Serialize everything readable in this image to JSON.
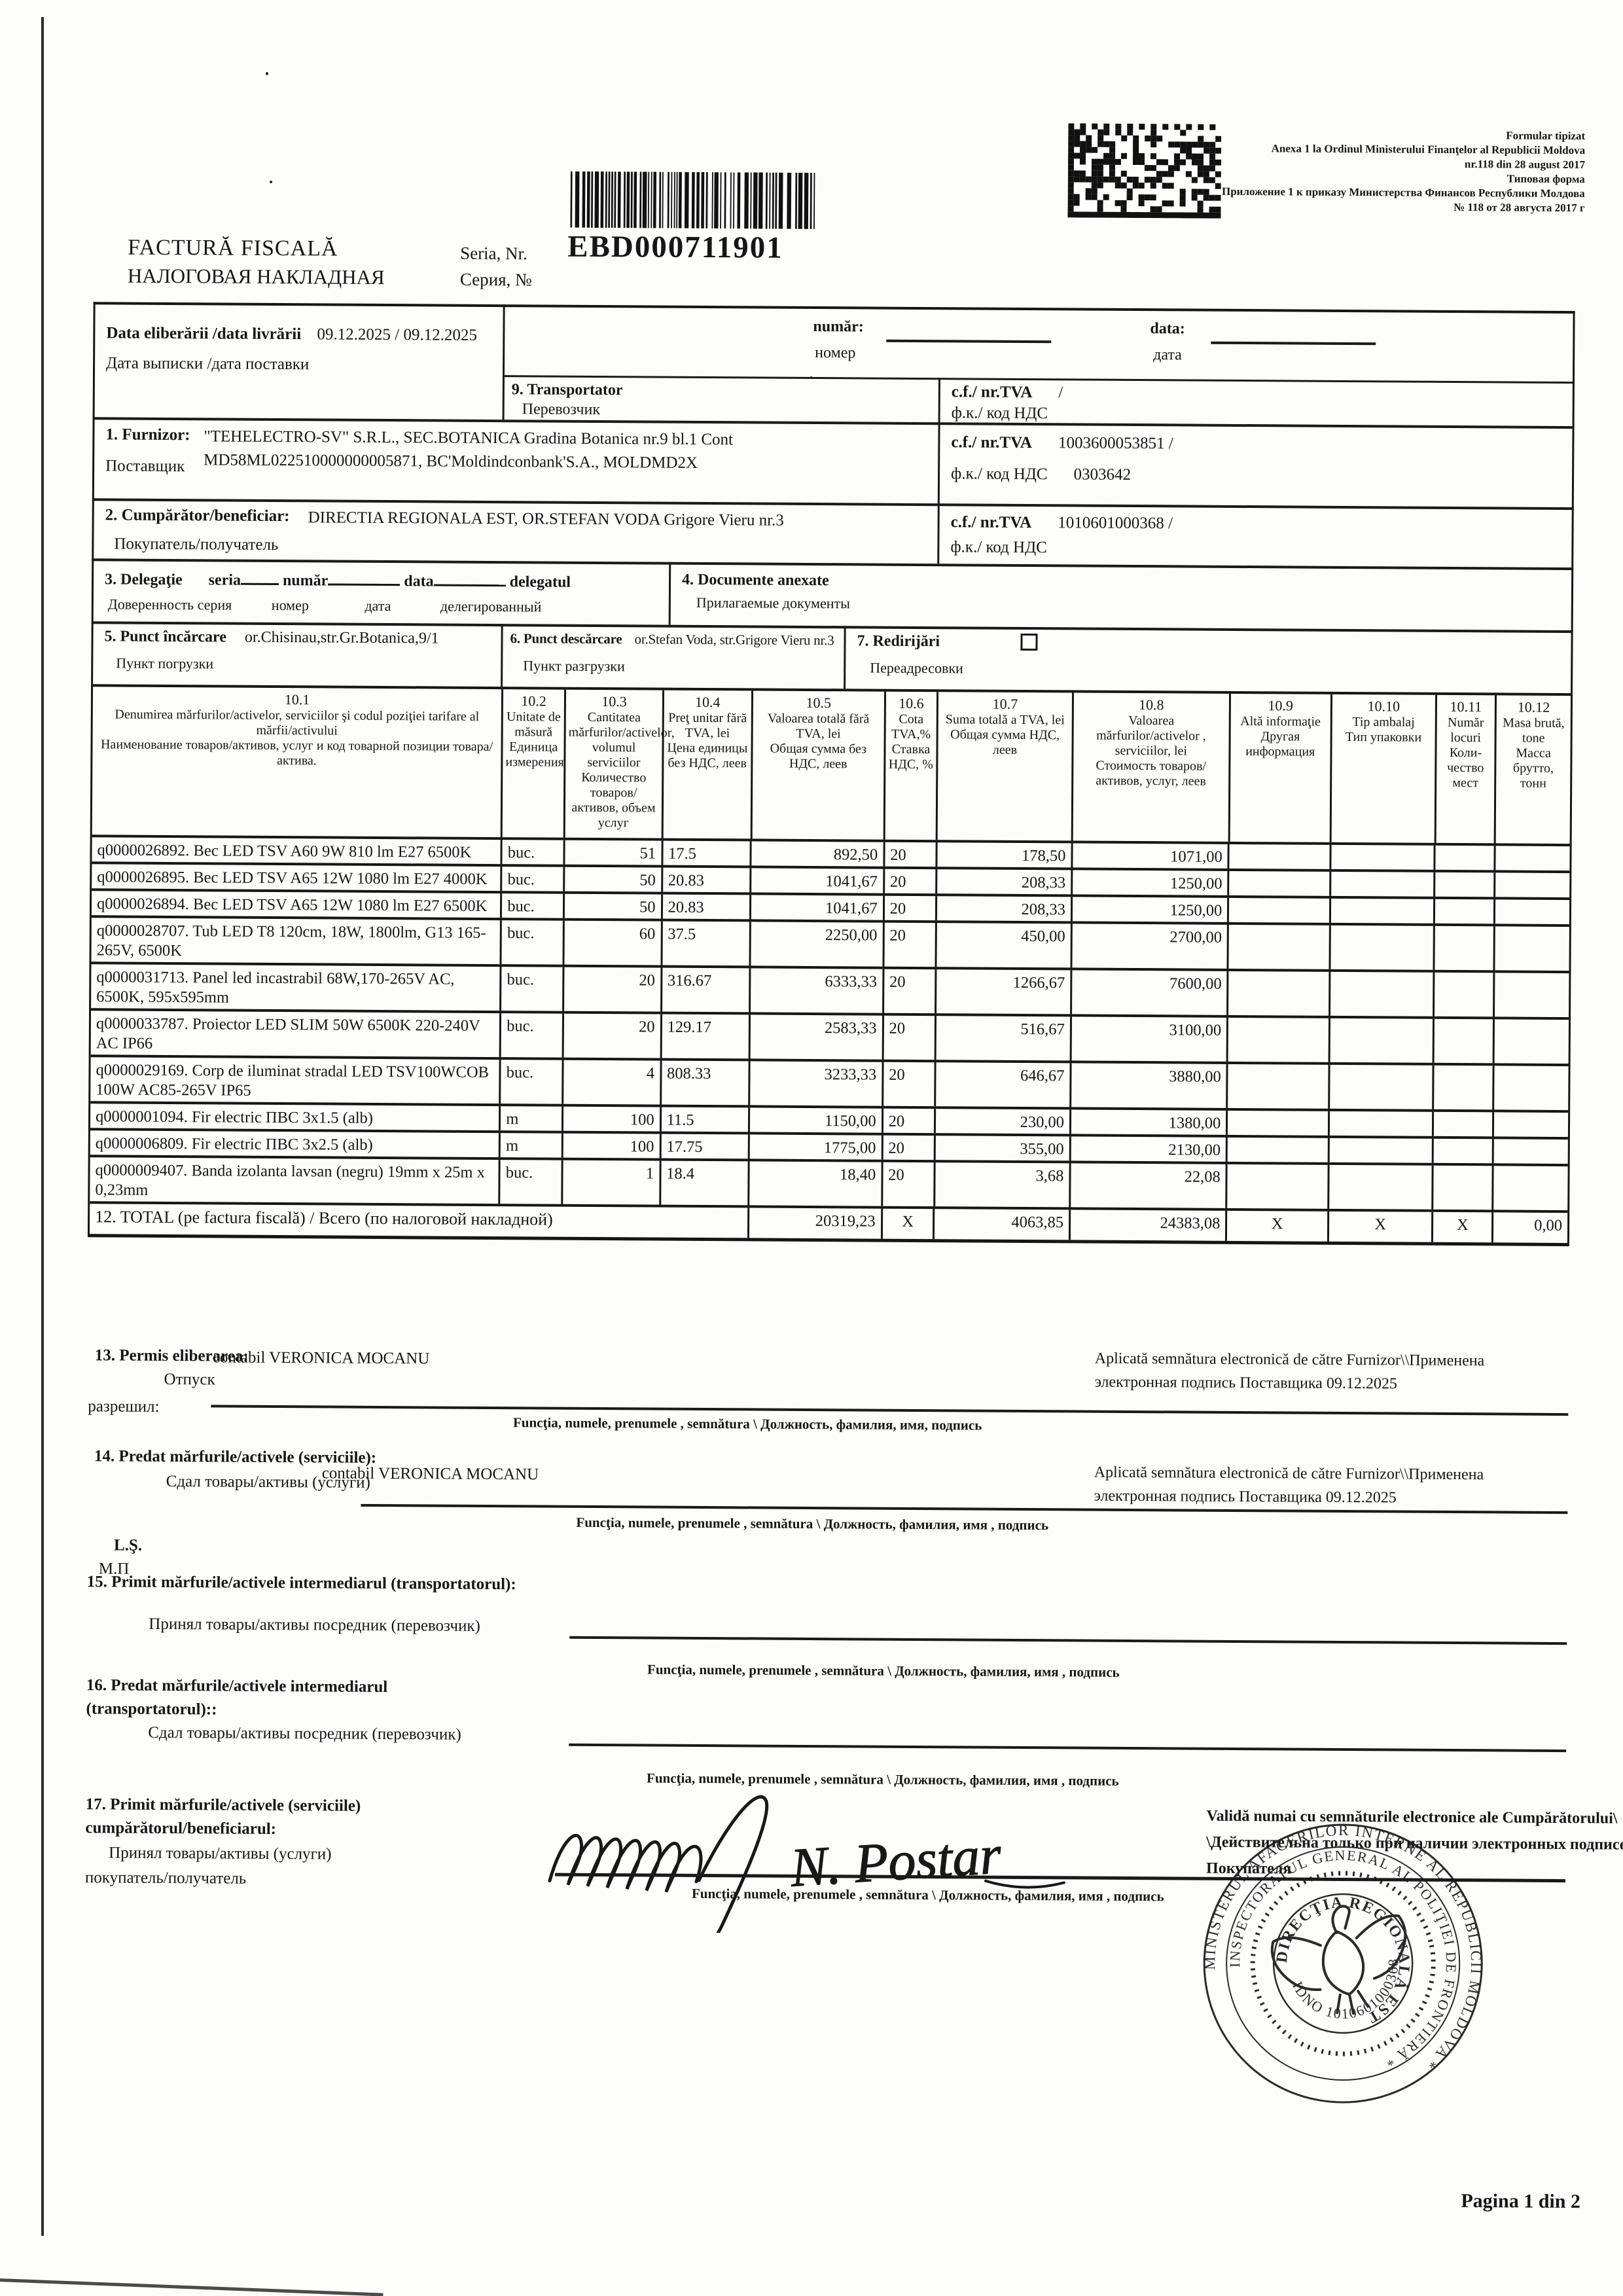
{
  "header": {
    "form_notes": [
      "Formular tipizat",
      "Anexa 1 la Ordinul Ministerului Finanţelor al Republicii Moldova",
      "nr.118 din 28 august 2017",
      "Типовая форма",
      "Приложение 1 к приказу Министерства Финансов Республики Молдова",
      "№ 118 от 28 августа 2017 г"
    ],
    "title_ro": "FACTURĂ FISCALĂ",
    "title_ru": "НАЛОГОВАЯ НАКЛАДНАЯ",
    "seria_label_ro": "Seria, Nr.",
    "seria_label_ru": "Серия, №",
    "seria_value": "EBD000711901"
  },
  "fields": {
    "date": {
      "label_ro": "Data eliberării /data livrării",
      "value": "09.12.2025  / 09.12.2025",
      "label_ru": "Дата выписки /дата поставки"
    },
    "numar": {
      "label_ro": "număr:",
      "label_ru": "номер"
    },
    "data_field": {
      "label_ro": "data:",
      "label_ru": "дата"
    },
    "transportator": {
      "label_ro": "9. Transportator",
      "label_ru": "Перевозчик",
      "cf_label_ro": "c.f./ nr.TVA",
      "cf_value": "/",
      "cf_label_ru": "ф.к./ код НДС"
    },
    "furnizor": {
      "label_ro": "1. Furnizor:",
      "label_ru": "Поставщик",
      "value": "\"TEHELECTRO-SV\" S.R.L., SEC.BOTANICA Gradina Botanica nr.9 bl.1 Cont MD58ML022510000000005871, BC'Moldindconbank'S.A., MOLDMD2X",
      "cf_label_ro": "c.f./ nr.TVA",
      "cf_value": "1003600053851 /",
      "cf_label_ru": "ф.к./ код НДС",
      "cf_value_ru": "0303642"
    },
    "cumparator": {
      "label_ro": "2. Cumpărător/beneficiar:",
      "label_ru": "Покупатель/получатель",
      "value": "DIRECTIA REGIONALA EST, OR.STEFAN VODA Grigore Vieru nr.3",
      "cf_label_ro": "c.f./ nr.TVA",
      "cf_value": "1010601000368  /",
      "cf_label_ru": "ф.к./ код НДС"
    },
    "delegatie": {
      "label_ro": "3. Delegaţie",
      "seria": "seria",
      "numar": "număr",
      "data": "data",
      "delegatul": "delegatul",
      "label_ru": "Доверенность серия",
      "numar_ru": "номер",
      "data_ru": "дата",
      "delegatul_ru": "делегированный"
    },
    "documente": {
      "label_ro": "4. Documente anexate",
      "label_ru": "Прилагаемые документы"
    },
    "punct_incarcare": {
      "label_ro": "5. Punct încărcare",
      "value": "or.Chisinau,str.Gr.Botanica,9/1",
      "label_ru": "Пункт погрузки"
    },
    "punct_descarcare": {
      "label_ro": "6. Punct descărcare",
      "value": "or.Stefan Voda, str.Grigore Vieru nr.3",
      "label_ru": "Пункт разгрузки"
    },
    "redirijari": {
      "label_ro": "7. Redirijări",
      "label_ru": "Переадресовки"
    }
  },
  "table": {
    "headers": [
      {
        "no": "10.1",
        "ro": "Denumirea mărfurilor/activelor, serviciilor şi codul poziţiei tarifare al mărfii/activului",
        "ru": "Наименование товаров/активов, услуг и код товарной позиции товара/актива."
      },
      {
        "no": "10.2",
        "ro": "Unitate de măsură",
        "ru": "Единица измерения"
      },
      {
        "no": "10.3",
        "ro": "Cantitatea mărfurilor/activelor, volumul serviciilor",
        "ru": "Количество товаров/активов, объем услуг"
      },
      {
        "no": "10.4",
        "ro": "Preţ unitar fără TVA, lei",
        "ru": "Цена единицы без НДС, леев"
      },
      {
        "no": "10.5",
        "ro": "Valoarea totală fără TVA, lei",
        "ru": "Общая сумма без НДС, леев"
      },
      {
        "no": "10.6",
        "ro": "Cota TVA,%",
        "ru": "Ставка НДС, %"
      },
      {
        "no": "10.7",
        "ro": "Suma totală a TVA, lei",
        "ru": "Общая сумма НДС, леев"
      },
      {
        "no": "10.8",
        "ro": "Valoarea mărfurilor/activelor , serviciilor, lei",
        "ru": "Стоимость товаров/активов, услуг, леев"
      },
      {
        "no": "10.9",
        "ro": "Altă informaţie",
        "ru": "Другая информация"
      },
      {
        "no": "10.10",
        "ro": "Tip ambalaj",
        "ru": "Тип упаковки"
      },
      {
        "no": "10.11",
        "ro": "Număr locuri",
        "ru": "Коли- чество мест"
      },
      {
        "no": "10.12",
        "ro": "Masa brută, tone",
        "ru": "Масса брутто, тонн"
      }
    ],
    "items": [
      {
        "name": "q0000026892. Bec LED TSV A60 9W 810 lm E27 6500K",
        "unit": "buc.",
        "qty": "51",
        "price": "17.5",
        "value_no_vat": "892,50",
        "vat": "20",
        "vat_sum": "178,50",
        "value_total": "1071,00"
      },
      {
        "name": "q0000026895. Bec LED TSV A65 12W 1080 lm E27 4000K",
        "unit": "buc.",
        "qty": "50",
        "price": "20.83",
        "value_no_vat": "1041,67",
        "vat": "20",
        "vat_sum": "208,33",
        "value_total": "1250,00"
      },
      {
        "name": "q0000026894. Bec LED TSV A65 12W 1080 lm E27 6500K",
        "unit": "buc.",
        "qty": "50",
        "price": "20.83",
        "value_no_vat": "1041,67",
        "vat": "20",
        "vat_sum": "208,33",
        "value_total": "1250,00"
      },
      {
        "name": "q0000028707. Tub LED T8 120cm, 18W, 1800lm, G13 165-265V, 6500K",
        "unit": "buc.",
        "qty": "60",
        "price": "37.5",
        "value_no_vat": "2250,00",
        "vat": "20",
        "vat_sum": "450,00",
        "value_total": "2700,00"
      },
      {
        "name": "q0000031713. Panel led incastrabil 68W,170-265V AC, 6500K, 595x595mm",
        "unit": "buc.",
        "qty": "20",
        "price": "316.67",
        "value_no_vat": "6333,33",
        "vat": "20",
        "vat_sum": "1266,67",
        "value_total": "7600,00"
      },
      {
        "name": "q0000033787. Proiector LED SLIM 50W 6500K 220-240V AC IP66",
        "unit": "buc.",
        "qty": "20",
        "price": "129.17",
        "value_no_vat": "2583,33",
        "vat": "20",
        "vat_sum": "516,67",
        "value_total": "3100,00"
      },
      {
        "name": "q0000029169. Corp de iluminat stradal LED TSV100WCOB 100W AC85-265V IP65",
        "unit": "buc.",
        "qty": "4",
        "price": "808.33",
        "value_no_vat": "3233,33",
        "vat": "20",
        "vat_sum": "646,67",
        "value_total": "3880,00"
      },
      {
        "name": "q0000001094. Fir electric ПВС 3x1.5 (alb)",
        "unit": "m",
        "qty": "100",
        "price": "11.5",
        "value_no_vat": "1150,00",
        "vat": "20",
        "vat_sum": "230,00",
        "value_total": "1380,00"
      },
      {
        "name": "q0000006809. Fir electric ПВС 3x2.5 (alb)",
        "unit": "m",
        "qty": "100",
        "price": "17.75",
        "value_no_vat": "1775,00",
        "vat": "20",
        "vat_sum": "355,00",
        "value_total": "2130,00"
      },
      {
        "name": "q0000009407. Banda izolanta lavsan (negru) 19mm x 25m x 0,23mm",
        "unit": "buc.",
        "qty": "1",
        "price": "18.4",
        "value_no_vat": "18,40",
        "vat": "20",
        "vat_sum": "3,68",
        "value_total": "22,08"
      }
    ],
    "total": {
      "label": "12. TOTAL (pe factura fiscală) / Всего (по налоговой накладной)",
      "value_no_vat": "20319,23",
      "vat": "X",
      "vat_sum": "4063,85",
      "value_total": "24383,08",
      "alt_info": "X",
      "ambalaj": "X",
      "locuri": "X",
      "masa": "0,00"
    }
  },
  "sections": {
    "s13": {
      "label_ro": "13. Permis eliberarea:",
      "label_ru1": "Отпуск",
      "label_ru2": "разрешил:",
      "person": "contabil VERONICA MOCANU",
      "applied_line1": "Aplicată semnătura electronică de către Furnizor\\\\Применена",
      "applied_line2": "электронная подпись Поставщика 09.12.2025",
      "caption": "Funcţia, numele, prenumele , semnătura \\ Должность, фамилия, имя,  подпись"
    },
    "s14": {
      "label_ro": "14. Predat mărfurile/activele (serviciile):",
      "label_ru": "Сдал товары/активы (услуги)",
      "person": "contabil VERONICA MOCANU",
      "applied_line1": "Aplicată semnătura electronică de către Furnizor\\\\Применена",
      "applied_line2": "электронная подпись Поставщика 09.12.2025",
      "caption": "Funcţia, numele, prenumele , semnătura \\ Должность, фамилия, имя , подпись"
    },
    "ls": "L.Ş.",
    "mp": "М.П",
    "s15": {
      "label_ro": "15. Primit mărfurile/activele intermediarul (transportatorul):",
      "label_ru": "Принял товары/активы посредник (перевозчик)",
      "caption": "Funcţia, numele, prenumele , semnătura \\ Должность, фамилия, имя , подпись"
    },
    "s16": {
      "label_ro1": "16. Predat mărfurile/activele intermediarul",
      "label_ro2": "(transportatorul)::",
      "label_ru": "Сдал товары/активы посредник (перевозчик)",
      "caption": "Funcţia, numele, prenumele , semnătura \\ Должность, фамилия, имя , подпись"
    },
    "s17": {
      "label_ro1": "17. Primit mărfurile/activele (serviciile)",
      "label_ro2": "cumpărătorul/beneficiarul:",
      "label_ru1": "Принял товары/активы (услуги)",
      "label_ru2": "покупатель/получатель",
      "signature_name": "N. Postar",
      "valid_line1": "Validă numai cu semnăturile electronice ale Cumpărătorului\\",
      "valid_line2": "\\Действительна только при наличии электронных подписей",
      "valid_line3": "Покупателя",
      "caption": "Funcţia, numele, prenumele , semnătura \\ Должность, фамилия, имя , подпись"
    }
  },
  "stamp": {
    "ring1": "MINISTERUL AFACERILOR INTERNE AL REPUBLICII MOLDOVA *",
    "ring2": "INSPECTORATUL GENERAL AL POLIŢIEI DE FRONTIERĂ *",
    "inner_top": "DIRECŢIA REGIONALĂ EST",
    "inner_bottom": "IDNO 1010601000368"
  },
  "footer": {
    "page": "Pagina 1 din 2"
  }
}
